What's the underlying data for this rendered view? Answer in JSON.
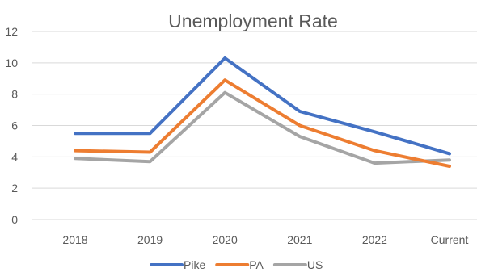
{
  "chart_data": {
    "type": "line",
    "title": "Unemployment Rate",
    "xlabel": "",
    "ylabel": "",
    "categories": [
      "2018",
      "2019",
      "2020",
      "2021",
      "2022",
      "Current"
    ],
    "ylim": [
      0,
      12
    ],
    "yticks": [
      "0",
      "2",
      "4",
      "6",
      "8",
      "10",
      "12"
    ],
    "grid": true,
    "legend_position": "bottom",
    "series": [
      {
        "name": "Pike",
        "color": "#4472C4",
        "values": [
          5.5,
          5.5,
          10.3,
          6.9,
          5.6,
          4.2
        ]
      },
      {
        "name": "PA",
        "color": "#ED7D31",
        "values": [
          4.4,
          4.3,
          8.9,
          6.0,
          4.4,
          3.4
        ]
      },
      {
        "name": "US",
        "color": "#A5A5A5",
        "values": [
          3.9,
          3.7,
          8.1,
          5.3,
          3.6,
          3.8
        ]
      }
    ]
  }
}
